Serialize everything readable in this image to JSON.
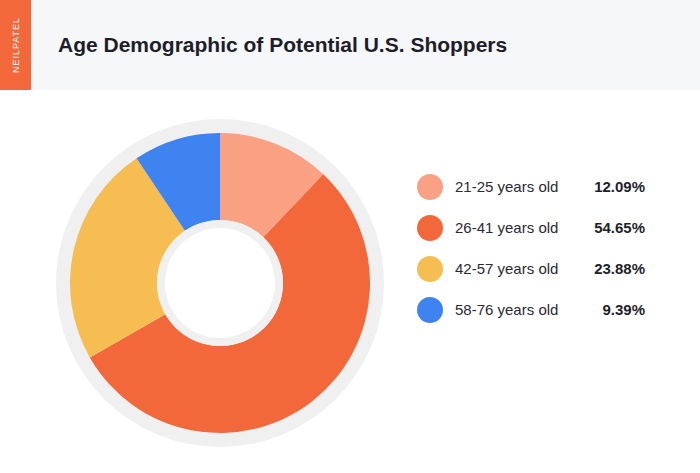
{
  "chart_data": {
    "type": "pie",
    "title": "Age Demographic of Potential U.S. Shoppers",
    "annotations": [
      "NEILPATEL"
    ],
    "categories": [
      "21-25 years old",
      "26-41 years old",
      "42-57 years old",
      "58-76 years old"
    ],
    "values": [
      12.09,
      54.65,
      23.88,
      9.39
    ],
    "value_labels": [
      "12.09%",
      "54.65%",
      "23.88%",
      "9.39%"
    ],
    "colors": [
      "#f9a182",
      "#f2683a",
      "#f6bd52",
      "#3e83f0"
    ],
    "legend": "right"
  }
}
